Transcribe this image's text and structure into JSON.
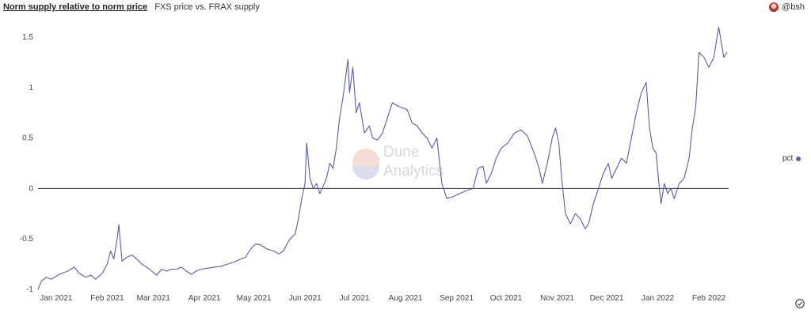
{
  "header": {
    "title": "Norm supply relative to norm price",
    "subtitle": "FXS price vs. FRAX supply"
  },
  "author": {
    "handle": "@bsh"
  },
  "watermark": {
    "line1": "Dune",
    "line2": "Analytics"
  },
  "colors": {
    "series": "#5b5ba8",
    "zero_line": "#333333"
  },
  "icons": {
    "avatar": "avatar-icon",
    "check": "check-circle-icon"
  },
  "chart_data": {
    "type": "line",
    "ylim": [
      -1,
      1.5
    ],
    "yticks": [
      -1,
      -0.5,
      0,
      0.5,
      1,
      1.5
    ],
    "ytick_labels": [
      "-1",
      "-0.5",
      "0",
      "0.5",
      "1",
      "1.5"
    ],
    "xticks": [
      "2021-01-01",
      "2021-02-01",
      "2021-03-01",
      "2021-04-01",
      "2021-05-01",
      "2021-06-01",
      "2021-07-01",
      "2021-08-01",
      "2021-09-01",
      "2021-10-01",
      "2021-11-01",
      "2021-12-01",
      "2022-01-01",
      "2022-02-01"
    ],
    "xtick_labels": [
      "Jan 2021",
      "Feb 2021",
      "Mar 2021",
      "Apr 2021",
      "May 2021",
      "Jun 2021",
      "Jul 2021",
      "Aug 2021",
      "Sep 2021",
      "Oct 2021",
      "Nov 2021",
      "Dec 2021",
      "Jan 2022",
      "Feb 2022"
    ],
    "xlim": [
      "2020-12-21",
      "2022-02-13"
    ],
    "legend_position": "right",
    "series": [
      {
        "name": "pct",
        "points": [
          [
            "2020-12-21",
            -1.0
          ],
          [
            "2020-12-23",
            -0.92
          ],
          [
            "2020-12-26",
            -0.88
          ],
          [
            "2020-12-29",
            -0.9
          ],
          [
            "2021-01-03",
            -0.85
          ],
          [
            "2021-01-08",
            -0.82
          ],
          [
            "2021-01-12",
            -0.78
          ],
          [
            "2021-01-15",
            -0.84
          ],
          [
            "2021-01-19",
            -0.88
          ],
          [
            "2021-01-22",
            -0.86
          ],
          [
            "2021-01-25",
            -0.9
          ],
          [
            "2021-01-29",
            -0.84
          ],
          [
            "2021-02-01",
            -0.75
          ],
          [
            "2021-02-03",
            -0.62
          ],
          [
            "2021-02-05",
            -0.7
          ],
          [
            "2021-02-07",
            -0.5
          ],
          [
            "2021-02-08",
            -0.36
          ],
          [
            "2021-02-10",
            -0.72
          ],
          [
            "2021-02-13",
            -0.68
          ],
          [
            "2021-02-16",
            -0.66
          ],
          [
            "2021-02-19",
            -0.7
          ],
          [
            "2021-02-22",
            -0.75
          ],
          [
            "2021-02-25",
            -0.78
          ],
          [
            "2021-02-28",
            -0.82
          ],
          [
            "2021-03-03",
            -0.86
          ],
          [
            "2021-03-06",
            -0.8
          ],
          [
            "2021-03-09",
            -0.82
          ],
          [
            "2021-03-12",
            -0.8
          ],
          [
            "2021-03-15",
            -0.8
          ],
          [
            "2021-03-18",
            -0.78
          ],
          [
            "2021-03-21",
            -0.82
          ],
          [
            "2021-03-24",
            -0.85
          ],
          [
            "2021-03-27",
            -0.82
          ],
          [
            "2021-03-30",
            -0.8
          ],
          [
            "2021-04-03",
            -0.79
          ],
          [
            "2021-04-07",
            -0.78
          ],
          [
            "2021-04-11",
            -0.77
          ],
          [
            "2021-04-15",
            -0.75
          ],
          [
            "2021-04-19",
            -0.73
          ],
          [
            "2021-04-23",
            -0.7
          ],
          [
            "2021-04-26",
            -0.68
          ],
          [
            "2021-04-29",
            -0.6
          ],
          [
            "2021-05-02",
            -0.55
          ],
          [
            "2021-05-05",
            -0.56
          ],
          [
            "2021-05-09",
            -0.6
          ],
          [
            "2021-05-13",
            -0.62
          ],
          [
            "2021-05-16",
            -0.65
          ],
          [
            "2021-05-19",
            -0.62
          ],
          [
            "2021-05-21",
            -0.55
          ],
          [
            "2021-05-23",
            -0.5
          ],
          [
            "2021-05-26",
            -0.45
          ],
          [
            "2021-05-28",
            -0.3
          ],
          [
            "2021-05-30",
            -0.1
          ],
          [
            "2021-06-01",
            0.05
          ],
          [
            "2021-06-02",
            0.45
          ],
          [
            "2021-06-04",
            0.1
          ],
          [
            "2021-06-06",
            0.0
          ],
          [
            "2021-06-08",
            0.05
          ],
          [
            "2021-06-10",
            -0.05
          ],
          [
            "2021-06-12",
            0.02
          ],
          [
            "2021-06-14",
            0.1
          ],
          [
            "2021-06-16",
            0.25
          ],
          [
            "2021-06-18",
            0.2
          ],
          [
            "2021-06-20",
            0.4
          ],
          [
            "2021-06-22",
            0.7
          ],
          [
            "2021-06-24",
            0.9
          ],
          [
            "2021-06-26",
            1.15
          ],
          [
            "2021-06-27",
            1.28
          ],
          [
            "2021-06-28",
            0.95
          ],
          [
            "2021-06-30",
            1.2
          ],
          [
            "2021-07-02",
            0.75
          ],
          [
            "2021-07-04",
            0.85
          ],
          [
            "2021-07-07",
            0.55
          ],
          [
            "2021-07-10",
            0.62
          ],
          [
            "2021-07-12",
            0.5
          ],
          [
            "2021-07-15",
            0.48
          ],
          [
            "2021-07-18",
            0.55
          ],
          [
            "2021-07-21",
            0.7
          ],
          [
            "2021-07-24",
            0.85
          ],
          [
            "2021-07-27",
            0.82
          ],
          [
            "2021-07-30",
            0.8
          ],
          [
            "2021-08-02",
            0.78
          ],
          [
            "2021-08-05",
            0.65
          ],
          [
            "2021-08-08",
            0.62
          ],
          [
            "2021-08-11",
            0.55
          ],
          [
            "2021-08-14",
            0.5
          ],
          [
            "2021-08-17",
            0.4
          ],
          [
            "2021-08-20",
            0.5
          ],
          [
            "2021-08-23",
            0.05
          ],
          [
            "2021-08-26",
            -0.1
          ],
          [
            "2021-08-30",
            -0.08
          ],
          [
            "2021-09-03",
            -0.05
          ],
          [
            "2021-09-07",
            -0.02
          ],
          [
            "2021-09-11",
            0.0
          ],
          [
            "2021-09-14",
            0.2
          ],
          [
            "2021-09-17",
            0.22
          ],
          [
            "2021-09-19",
            0.05
          ],
          [
            "2021-09-22",
            0.15
          ],
          [
            "2021-09-25",
            0.3
          ],
          [
            "2021-09-28",
            0.4
          ],
          [
            "2021-10-02",
            0.45
          ],
          [
            "2021-10-06",
            0.55
          ],
          [
            "2021-10-10",
            0.58
          ],
          [
            "2021-10-14",
            0.52
          ],
          [
            "2021-10-18",
            0.35
          ],
          [
            "2021-10-21",
            0.2
          ],
          [
            "2021-10-23",
            0.05
          ],
          [
            "2021-10-26",
            0.25
          ],
          [
            "2021-10-29",
            0.5
          ],
          [
            "2021-10-31",
            0.6
          ],
          [
            "2021-11-02",
            0.45
          ],
          [
            "2021-11-04",
            0.05
          ],
          [
            "2021-11-06",
            -0.25
          ],
          [
            "2021-11-09",
            -0.35
          ],
          [
            "2021-11-12",
            -0.25
          ],
          [
            "2021-11-15",
            -0.3
          ],
          [
            "2021-11-18",
            -0.4
          ],
          [
            "2021-11-20",
            -0.35
          ],
          [
            "2021-11-23",
            -0.15
          ],
          [
            "2021-11-26",
            0.0
          ],
          [
            "2021-11-29",
            0.15
          ],
          [
            "2021-12-02",
            0.25
          ],
          [
            "2021-12-04",
            0.1
          ],
          [
            "2021-12-07",
            0.2
          ],
          [
            "2021-12-10",
            0.3
          ],
          [
            "2021-12-13",
            0.25
          ],
          [
            "2021-12-16",
            0.5
          ],
          [
            "2021-12-19",
            0.75
          ],
          [
            "2021-12-22",
            0.95
          ],
          [
            "2021-12-25",
            1.05
          ],
          [
            "2021-12-27",
            0.6
          ],
          [
            "2021-12-29",
            0.4
          ],
          [
            "2021-12-31",
            0.35
          ],
          [
            "2022-01-02",
            0.0
          ],
          [
            "2022-01-03",
            -0.15
          ],
          [
            "2022-01-05",
            0.05
          ],
          [
            "2022-01-07",
            -0.05
          ],
          [
            "2022-01-09",
            0.0
          ],
          [
            "2022-01-11",
            -0.1
          ],
          [
            "2022-01-14",
            0.05
          ],
          [
            "2022-01-17",
            0.1
          ],
          [
            "2022-01-20",
            0.3
          ],
          [
            "2022-01-22",
            0.6
          ],
          [
            "2022-01-24",
            0.8
          ],
          [
            "2022-01-26",
            1.35
          ],
          [
            "2022-01-29",
            1.3
          ],
          [
            "2022-02-01",
            1.2
          ],
          [
            "2022-02-04",
            1.3
          ],
          [
            "2022-02-07",
            1.6
          ],
          [
            "2022-02-10",
            1.3
          ],
          [
            "2022-02-12",
            1.35
          ]
        ]
      }
    ]
  }
}
